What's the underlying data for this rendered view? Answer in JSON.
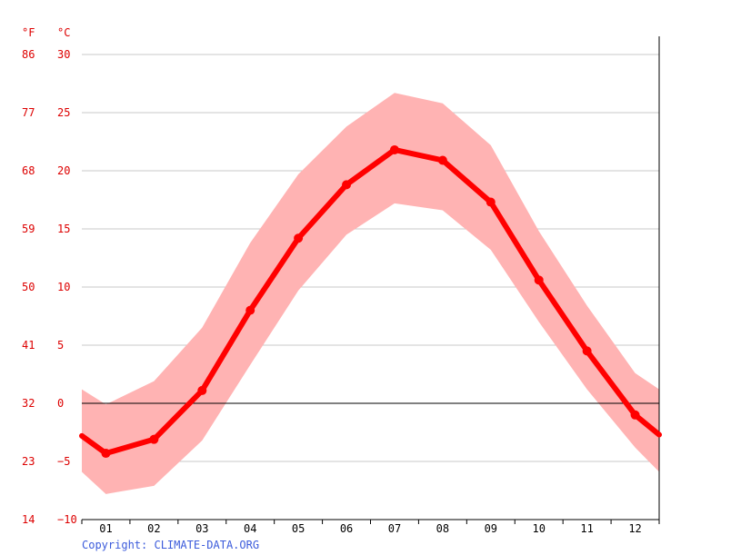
{
  "chart_data": {
    "type": "line",
    "title": "",
    "units": {
      "left": "°F",
      "right": "°C"
    },
    "categories": [
      "01",
      "02",
      "03",
      "04",
      "05",
      "06",
      "07",
      "08",
      "09",
      "10",
      "11",
      "12"
    ],
    "series": [
      {
        "values": [
          -4.3,
          -3.1,
          1.1,
          8.0,
          14.2,
          18.8,
          21.8,
          20.9,
          17.3,
          10.6,
          4.5,
          -1.0
        ]
      }
    ],
    "range": {
      "upper": [
        -0.1,
        1.9,
        6.5,
        13.8,
        19.7,
        23.8,
        26.7,
        25.8,
        22.2,
        14.8,
        8.4,
        2.6
      ],
      "lower": [
        -7.8,
        -7.1,
        -3.2,
        3.3,
        9.7,
        14.5,
        17.2,
        16.6,
        13.2,
        7.0,
        1.2,
        -3.8
      ],
      "left_edge_upper": 1.2,
      "left_edge_lower": -5.9,
      "right_edge_upper": 1.2,
      "right_edge_lower": -5.9
    },
    "line_edges": {
      "left": -2.8,
      "right": -2.7
    },
    "y_ticks_c": [
      "30",
      "25",
      "20",
      "15",
      "10",
      "5",
      "0",
      "−5",
      "−10"
    ],
    "y_ticks_f": [
      "86",
      "77",
      "68",
      "59",
      "50",
      "41",
      "32",
      "23",
      "14"
    ],
    "ylim": [
      -10,
      30
    ],
    "grid": true,
    "colors": {
      "line": "#ff0000",
      "band": "#ffb3b3",
      "axis_text": "#dd0000",
      "grid": "#c8c8c8"
    }
  },
  "copyright": "Copyright: CLIMATE-DATA.ORG"
}
